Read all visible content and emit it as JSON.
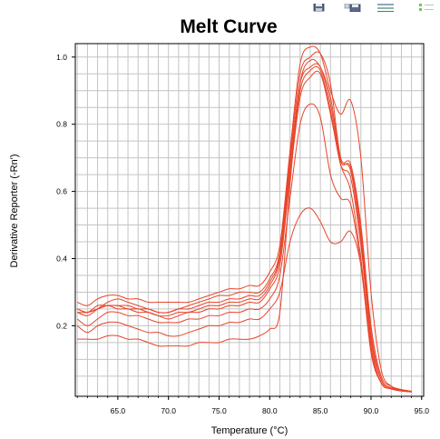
{
  "toolbar": {
    "icons": [
      "save-icon",
      "save-as-icon",
      "list-view-icon",
      "legend-icon"
    ]
  },
  "chart_data": {
    "type": "line",
    "title": "Melt Curve",
    "xlabel": "Temperature (°C)",
    "ylabel": "Derivative Reporter (-Rn')",
    "xlim": [
      60.8,
      95.2
    ],
    "ylim": [
      -0.01,
      1.04
    ],
    "xticks": [
      "65.0",
      "70.0",
      "75.0",
      "80.0",
      "85.0",
      "90.0",
      "95.0"
    ],
    "yticks": [
      "0.2",
      "0.4",
      "0.6",
      "0.8",
      "1.0"
    ],
    "grid": true,
    "line_color": "#e8442a",
    "series": [
      {
        "x": [
          61,
          62,
          63,
          64,
          65,
          66,
          67,
          68,
          69,
          70,
          71,
          72,
          73,
          74,
          75,
          76,
          77,
          78,
          79,
          80,
          81,
          82,
          83,
          84,
          85,
          86,
          87,
          88,
          89,
          90,
          91,
          92,
          93,
          94
        ],
        "values": [
          0.27,
          0.26,
          0.28,
          0.29,
          0.29,
          0.28,
          0.28,
          0.27,
          0.27,
          0.27,
          0.27,
          0.27,
          0.28,
          0.29,
          0.3,
          0.31,
          0.31,
          0.32,
          0.32,
          0.36,
          0.44,
          0.72,
          0.98,
          1.03,
          1.01,
          0.9,
          0.83,
          0.87,
          0.7,
          0.3,
          0.07,
          0.02,
          0.01,
          0.005
        ]
      },
      {
        "x": [
          61,
          62,
          63,
          64,
          65,
          66,
          67,
          68,
          69,
          70,
          71,
          72,
          73,
          74,
          75,
          76,
          77,
          78,
          79,
          80,
          81,
          82,
          83,
          84,
          85,
          86,
          87,
          88,
          89,
          90,
          91,
          92,
          93,
          94
        ],
        "values": [
          0.24,
          0.23,
          0.25,
          0.27,
          0.28,
          0.27,
          0.26,
          0.25,
          0.24,
          0.24,
          0.25,
          0.26,
          0.27,
          0.28,
          0.29,
          0.29,
          0.3,
          0.3,
          0.3,
          0.34,
          0.42,
          0.7,
          0.95,
          1.0,
          1.01,
          0.92,
          0.7,
          0.68,
          0.5,
          0.2,
          0.05,
          0.02,
          0.01,
          0.005
        ]
      },
      {
        "x": [
          61,
          62,
          63,
          64,
          65,
          66,
          67,
          68,
          69,
          70,
          71,
          72,
          73,
          74,
          75,
          76,
          77,
          78,
          79,
          80,
          81,
          82,
          83,
          84,
          85,
          86,
          87,
          88,
          89,
          90,
          91,
          92,
          93,
          94
        ],
        "values": [
          0.25,
          0.24,
          0.25,
          0.26,
          0.26,
          0.26,
          0.25,
          0.25,
          0.24,
          0.24,
          0.25,
          0.25,
          0.26,
          0.27,
          0.27,
          0.28,
          0.28,
          0.29,
          0.29,
          0.33,
          0.41,
          0.68,
          0.92,
          0.97,
          0.97,
          0.86,
          0.69,
          0.67,
          0.48,
          0.18,
          0.04,
          0.015,
          0.008,
          0.004
        ]
      },
      {
        "x": [
          61,
          62,
          63,
          64,
          65,
          66,
          67,
          68,
          69,
          70,
          71,
          72,
          73,
          74,
          75,
          76,
          77,
          78,
          79,
          80,
          81,
          82,
          83,
          84,
          85,
          86,
          87,
          88,
          89,
          90,
          91,
          92,
          93,
          94
        ],
        "values": [
          0.25,
          0.24,
          0.26,
          0.26,
          0.26,
          0.25,
          0.25,
          0.24,
          0.23,
          0.23,
          0.24,
          0.24,
          0.25,
          0.26,
          0.26,
          0.27,
          0.27,
          0.28,
          0.28,
          0.32,
          0.4,
          0.66,
          0.9,
          0.96,
          0.96,
          0.84,
          0.68,
          0.64,
          0.44,
          0.16,
          0.04,
          0.015,
          0.008,
          0.004
        ]
      },
      {
        "x": [
          61,
          62,
          63,
          64,
          65,
          66,
          67,
          68,
          69,
          70,
          71,
          72,
          73,
          74,
          75,
          76,
          77,
          78,
          79,
          80,
          81,
          82,
          83,
          84,
          85,
          86,
          87,
          88,
          89,
          90,
          91,
          92,
          93,
          94
        ],
        "values": [
          0.24,
          0.24,
          0.25,
          0.26,
          0.25,
          0.25,
          0.24,
          0.24,
          0.23,
          0.22,
          0.23,
          0.24,
          0.24,
          0.25,
          0.25,
          0.26,
          0.26,
          0.27,
          0.27,
          0.31,
          0.38,
          0.64,
          0.88,
          0.94,
          0.95,
          0.83,
          0.68,
          0.6,
          0.4,
          0.14,
          0.03,
          0.012,
          0.006,
          0.003
        ]
      },
      {
        "x": [
          61,
          62,
          63,
          64,
          65,
          66,
          67,
          68,
          69,
          70,
          71,
          72,
          73,
          74,
          75,
          76,
          77,
          78,
          79,
          80,
          81,
          82,
          83,
          84,
          85,
          86,
          87,
          88,
          89,
          90,
          91,
          92,
          93,
          94
        ],
        "values": [
          0.22,
          0.2,
          0.22,
          0.24,
          0.24,
          0.23,
          0.23,
          0.22,
          0.21,
          0.21,
          0.21,
          0.22,
          0.22,
          0.23,
          0.23,
          0.24,
          0.24,
          0.25,
          0.25,
          0.28,
          0.35,
          0.58,
          0.8,
          0.86,
          0.82,
          0.65,
          0.58,
          0.56,
          0.38,
          0.13,
          0.03,
          0.012,
          0.006,
          0.003
        ]
      },
      {
        "x": [
          61,
          62,
          63,
          64,
          65,
          66,
          67,
          68,
          69,
          70,
          71,
          72,
          73,
          74,
          75,
          76,
          77,
          78,
          79,
          80,
          81,
          82,
          83,
          84,
          85,
          86,
          87,
          88,
          89,
          90,
          91,
          92,
          93,
          94
        ],
        "values": [
          0.2,
          0.18,
          0.2,
          0.21,
          0.21,
          0.2,
          0.19,
          0.18,
          0.18,
          0.17,
          0.17,
          0.18,
          0.19,
          0.2,
          0.2,
          0.21,
          0.21,
          0.22,
          0.22,
          0.25,
          0.3,
          0.45,
          0.53,
          0.55,
          0.51,
          0.45,
          0.45,
          0.48,
          0.38,
          0.12,
          0.03,
          0.012,
          0.006,
          0.003
        ]
      },
      {
        "x": [
          61,
          62,
          63,
          64,
          65,
          66,
          67,
          68,
          69,
          70,
          71,
          72,
          73,
          74,
          75,
          76,
          77,
          78,
          79,
          80,
          81,
          82,
          83,
          84,
          85,
          86,
          87,
          88,
          89,
          90,
          91,
          92,
          93,
          94
        ],
        "values": [
          0.16,
          0.16,
          0.16,
          0.17,
          0.17,
          0.16,
          0.16,
          0.15,
          0.14,
          0.14,
          0.14,
          0.14,
          0.15,
          0.15,
          0.15,
          0.16,
          0.16,
          0.16,
          0.17,
          0.19,
          0.24,
          0.62,
          0.92,
          0.99,
          0.97,
          0.88,
          0.7,
          0.66,
          0.46,
          0.16,
          0.04,
          0.015,
          0.008,
          0.004
        ]
      }
    ]
  }
}
